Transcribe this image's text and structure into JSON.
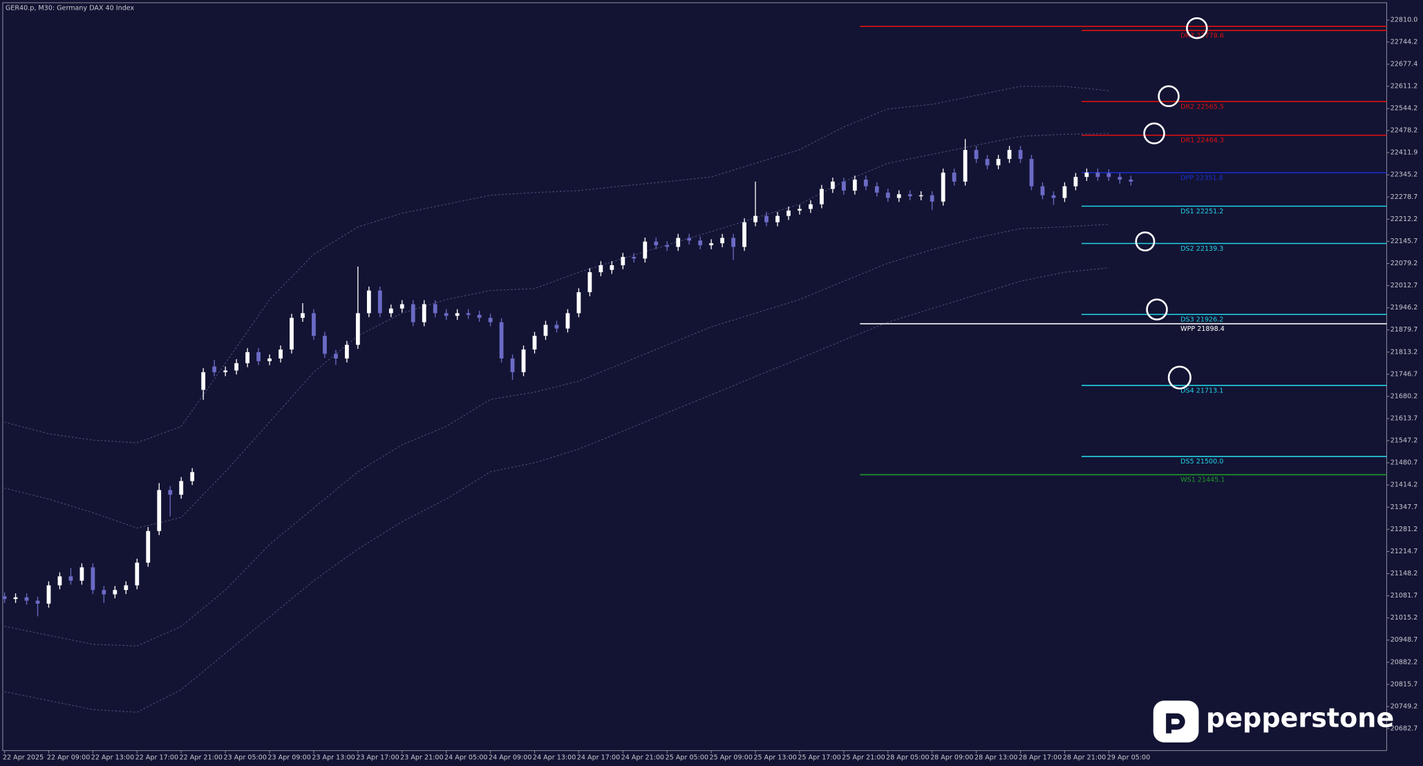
{
  "chart_data": {
    "type": "candlestick",
    "title": "GER40.p, M30:  Germany DAX 40 Index",
    "categories": [
      "22 Apr 2025",
      null,
      null,
      null,
      "22 Apr 09:00",
      null,
      null,
      null,
      "22 Apr 13:00",
      null,
      null,
      null,
      "22 Apr 17:00",
      null,
      null,
      null,
      "22 Apr 21:00",
      null,
      null,
      null,
      "23 Apr 05:00",
      null,
      null,
      null,
      "23 Apr 09:00",
      null,
      null,
      null,
      "23 Apr 13:00",
      null,
      null,
      null,
      "23 Apr 17:00",
      null,
      null,
      null,
      "23 Apr 21:00",
      null,
      null,
      null,
      "24 Apr 05:00",
      null,
      null,
      null,
      "24 Apr 09:00",
      null,
      null,
      null,
      "24 Apr 13:00",
      null,
      null,
      null,
      "24 Apr 17:00",
      null,
      null,
      null,
      "24 Apr 21:00",
      null,
      null,
      null,
      "25 Apr 05:00",
      null,
      null,
      null,
      "25 Apr 09:00",
      null,
      null,
      null,
      "25 Apr 13:00",
      null,
      null,
      null,
      "25 Apr 17:00",
      null,
      null,
      null,
      "25 Apr 21:00",
      null,
      null,
      null,
      "28 Apr 05:00",
      null,
      null,
      null,
      "28 Apr 09:00",
      null,
      null,
      null,
      "28 Apr 13:00",
      null,
      null,
      null,
      "28 Apr 17:00",
      null,
      null,
      null,
      "28 Apr 21:00",
      null,
      null,
      null,
      "29 Apr 05:00",
      null,
      null
    ],
    "open": [
      21080,
      21072,
      21077,
      21067,
      21058,
      21113,
      21140,
      21127,
      21167,
      21099,
      21086,
      21099,
      21113,
      21181,
      21276,
      21399,
      21385,
      21426,
      21700,
      21770,
      21753,
      21758,
      21780,
      21813,
      21786,
      21794,
      21821,
      21916,
      21930,
      21862,
      21808,
      21794,
      21835,
      21930,
      21998,
      21930,
      21944,
      21957,
      21903,
      21957,
      21930,
      21922,
      21930,
      21925,
      21916,
      21903,
      21794,
      21753,
      21821,
      21862,
      21895,
      21884,
      21930,
      21993,
      22053,
      22060,
      22074,
      22099,
      22094,
      22145,
      22134,
      22129,
      22156,
      22148,
      22134,
      22140,
      22156,
      22129,
      22203,
      22222,
      22203,
      22222,
      22238,
      22243,
      22257,
      22303,
      22325,
      22298,
      22331,
      22311,
      22292,
      22276,
      22287,
      22281,
      22284,
      22265,
      22352,
      22325,
      22420,
      22393,
      22374,
      22393,
      22420,
      22393,
      22311,
      22284,
      22276,
      22311,
      22339,
      22352,
      22350,
      22339,
      22331
    ],
    "high": [
      21092,
      21089,
      21089,
      21079,
      21125,
      21152,
      21165,
      21179,
      21179,
      21111,
      21111,
      21125,
      21193,
      21288,
      21420,
      21411,
      21438,
      21465,
      21765,
      21790,
      21770,
      21792,
      21825,
      21825,
      21806,
      21833,
      21928,
      21960,
      21942,
      21874,
      21820,
      21847,
      22070,
      22010,
      22010,
      21956,
      21969,
      21969,
      21969,
      21969,
      21942,
      21942,
      21942,
      21937,
      21928,
      21915,
      21806,
      21833,
      21874,
      21907,
      21907,
      21942,
      22005,
      22065,
      22086,
      22086,
      22111,
      22111,
      22157,
      22157,
      22146,
      22168,
      22168,
      22160,
      22152,
      22168,
      22168,
      22215,
      22325,
      22234,
      22234,
      22250,
      22255,
      22269,
      22315,
      22337,
      22337,
      22343,
      22343,
      22323,
      22304,
      22299,
      22299,
      22296,
      22296,
      22364,
      22364,
      22453,
      22432,
      22405,
      22405,
      22432,
      22432,
      22405,
      22323,
      22296,
      22323,
      22351,
      22364,
      22364,
      22362,
      22351,
      22343
    ],
    "low": [
      21060,
      21060,
      21055,
      21020,
      21046,
      21101,
      21115,
      21115,
      21087,
      21060,
      21074,
      21087,
      21101,
      21169,
      21264,
      21320,
      21373,
      21414,
      21670,
      21741,
      21741,
      21746,
      21768,
      21774,
      21774,
      21782,
      21809,
      21904,
      21850,
      21796,
      21775,
      21782,
      21823,
      21918,
      21918,
      21918,
      21932,
      21891,
      21891,
      21918,
      21910,
      21910,
      21913,
      21904,
      21891,
      21782,
      21730,
      21741,
      21809,
      21850,
      21872,
      21872,
      21918,
      21981,
      22041,
      22048,
      22062,
      22082,
      22082,
      22122,
      22117,
      22117,
      22136,
      22122,
      22122,
      22128,
      22090,
      22117,
      22191,
      22191,
      22191,
      22210,
      22226,
      22231,
      22245,
      22291,
      22286,
      22286,
      22299,
      22280,
      22264,
      22264,
      22269,
      22269,
      22240,
      22253,
      22313,
      22313,
      22381,
      22362,
      22362,
      22381,
      22381,
      22299,
      22272,
      22255,
      22264,
      22299,
      22327,
      22327,
      22327,
      22319,
      22313
    ],
    "close": [
      21072,
      21077,
      21067,
      21058,
      21113,
      21140,
      21127,
      21167,
      21099,
      21086,
      21099,
      21113,
      21181,
      21276,
      21399,
      21385,
      21426,
      21453,
      21753,
      21753,
      21758,
      21780,
      21813,
      21786,
      21794,
      21821,
      21916,
      21930,
      21862,
      21808,
      21794,
      21835,
      21930,
      21998,
      21930,
      21944,
      21957,
      21903,
      21957,
      21930,
      21922,
      21930,
      21925,
      21916,
      21903,
      21794,
      21753,
      21821,
      21862,
      21895,
      21884,
      21930,
      21993,
      22053,
      22074,
      22074,
      22099,
      22094,
      22145,
      22134,
      22129,
      22156,
      22148,
      22134,
      22140,
      22156,
      22129,
      22203,
      22222,
      22203,
      22222,
      22238,
      22243,
      22257,
      22303,
      22325,
      22298,
      22331,
      22311,
      22292,
      22276,
      22287,
      22281,
      22284,
      22265,
      22352,
      22325,
      22420,
      22393,
      22374,
      22393,
      22420,
      22393,
      22311,
      22284,
      22276,
      22311,
      22339,
      22352,
      22339,
      22339,
      22331,
      22325
    ],
    "up_color": "#ffffff",
    "down_color": "#6b6bc6",
    "ylim": [
      20617,
      22862
    ],
    "yticks": [
      {
        "value": 22810,
        "label": "22810.0"
      },
      22744.2,
      22677.4,
      22611.2,
      22544.2,
      22478.2,
      22411.9,
      22345.2,
      22278.7,
      22212.2,
      22145.7,
      22079.2,
      22012.7,
      21946.2,
      21879.7,
      21813.2,
      21746.7,
      21680.2,
      21613.7,
      21547.2,
      21480.7,
      21414.2,
      21347.7,
      21281.2,
      21214.7,
      21148.2,
      21081.7,
      21015.2,
      20948.7,
      20882.2,
      20815.7,
      20749.2,
      20682.7
    ],
    "bands": [
      {
        "color": "#4b5080",
        "values": [
          21603,
          21568,
          21549,
          21541,
          21590,
          21780,
          21971,
          22107,
          22189,
          22230,
          22257,
          22284,
          22292,
          22298,
          22312,
          22325,
          22339,
          22380,
          22421,
          22489,
          22543,
          22557,
          22584,
          22611,
          22611,
          22598
        ]
      },
      {
        "color": "#4b5080",
        "values": [
          21405,
          21372,
          21331,
          21285,
          21317,
          21454,
          21603,
          21753,
          21862,
          21930,
          21971,
          21998,
          22004,
          22053,
          22094,
          22135,
          22175,
          22216,
          22257,
          22325,
          22380,
          22407,
          22434,
          22461,
          22467,
          22470
        ]
      },
      {
        "color": "#4b5080",
        "values": [
          20990,
          20963,
          20936,
          20931,
          20990,
          21099,
          21236,
          21345,
          21454,
          21535,
          21590,
          21671,
          21693,
          21726,
          21780,
          21835,
          21889,
          21930,
          21971,
          22026,
          22080,
          22121,
          22156,
          22184,
          22189,
          22197
        ]
      },
      {
        "color": "#4b5080",
        "values": [
          20794,
          20767,
          20740,
          20732,
          20800,
          20909,
          21018,
          21127,
          21222,
          21304,
          21372,
          21454,
          21481,
          21522,
          21576,
          21631,
          21685,
          21740,
          21794,
          21849,
          21903,
          21944,
          21985,
          22026,
          22053,
          22066
        ]
      }
    ],
    "weekly_levels": [
      {
        "value": 22791,
        "color": "#e01010"
      },
      {
        "label": "WPP 21898.4",
        "value": 21898.4,
        "color": "#ffffff"
      },
      {
        "label": "WS1 21445.1",
        "value": 21445.1,
        "color": "#1f9a2a"
      }
    ],
    "daily_levels": [
      {
        "label": "DR3 22778.6",
        "value": 22778.6,
        "color": "#e01010"
      },
      {
        "label": "DR2 22565.5",
        "value": 22565.5,
        "color": "#e01010"
      },
      {
        "label": "DR1 22464.3",
        "value": 22464.3,
        "color": "#e01010"
      },
      {
        "label": "DPP 22351.8",
        "value": 22351.8,
        "color": "#1a2fd0"
      },
      {
        "label": "DS1 22251.2",
        "value": 22251.2,
        "color": "#22d3e6"
      },
      {
        "label": "DS2 22139.3",
        "value": 22139.3,
        "color": "#22d3e6"
      },
      {
        "label": "DS3 21926.2",
        "value": 21926.2,
        "color": "#22d3e6"
      },
      {
        "label": "DS4 21713.1",
        "value": 21713.1,
        "color": "#22d3e6"
      },
      {
        "label": "DS5 21500.0",
        "value": 21500.0,
        "color": "#22d3e6"
      }
    ]
  },
  "brand": "pepperstone"
}
